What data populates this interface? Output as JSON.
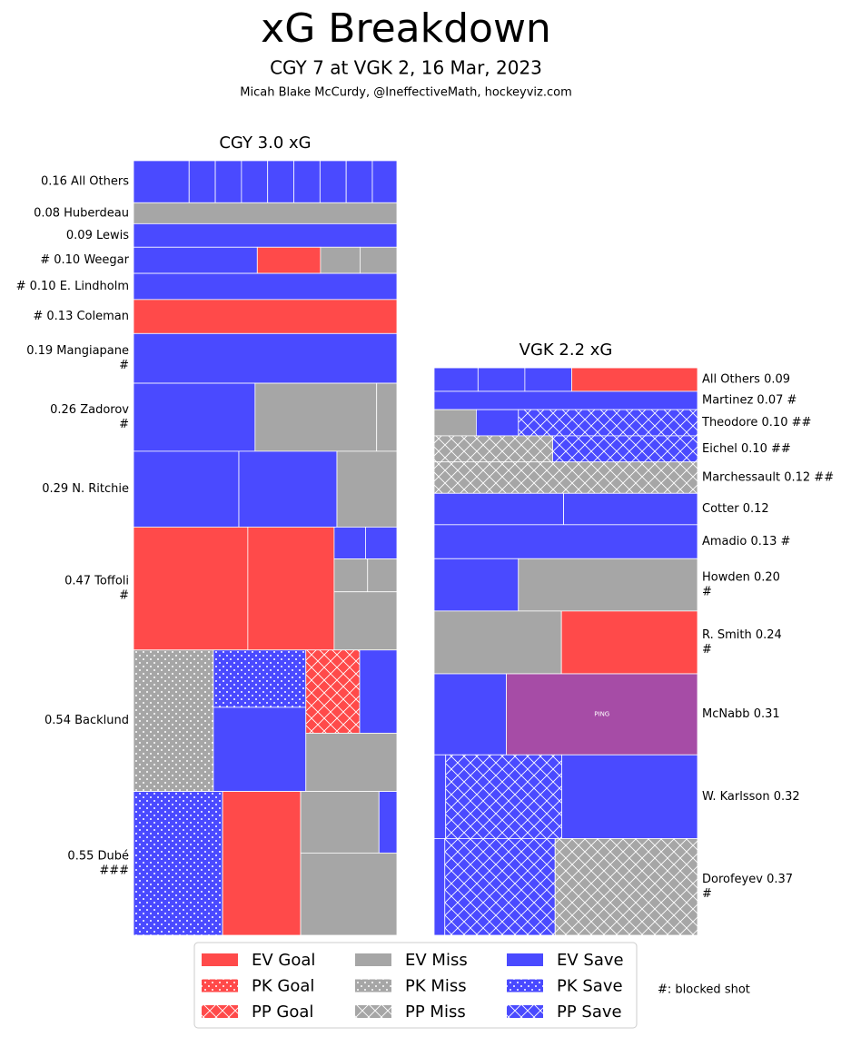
{
  "chart_data": {
    "type": "treemap",
    "title": "xG Breakdown",
    "subtitle": "CGY 7 at VGK 2, 16 Mar, 2023",
    "credit": "Micah Blake McCurdy, @IneffectiveMath, hockeyviz.com",
    "note": "#: blocked shot",
    "legend": [
      {
        "name": "EV Goal",
        "color": "#ff4a4a",
        "hatch": "none"
      },
      {
        "name": "PK Goal",
        "color": "#ff4a4a",
        "hatch": "dots"
      },
      {
        "name": "PP Goal",
        "color": "#ff4a4a",
        "hatch": "cross"
      },
      {
        "name": "EV Miss",
        "color": "#a6a6a6",
        "hatch": "none"
      },
      {
        "name": "PK Miss",
        "color": "#a6a6a6",
        "hatch": "dots"
      },
      {
        "name": "PP Miss",
        "color": "#a6a6a6",
        "hatch": "cross"
      },
      {
        "name": "EV Save",
        "color": "#4a4aff",
        "hatch": "none"
      },
      {
        "name": "PK Save",
        "color": "#4a4aff",
        "hatch": "dots"
      },
      {
        "name": "PP Save",
        "color": "#4a4aff",
        "hatch": "cross"
      }
    ],
    "panels": [
      {
        "title": "CGY 3.0 xG",
        "label_side": "left",
        "players": [
          {
            "label": [
              "0.16 All Others"
            ],
            "columns": [
              [
                [
                  {
                    "xg": 0.034,
                    "kind": "EV Save"
                  }
                ]
              ],
              [
                [
                  {
                    "xg": 0.016,
                    "kind": "EV Save"
                  }
                ]
              ],
              [
                [
                  {
                    "xg": 0.016,
                    "kind": "EV Save"
                  }
                ]
              ],
              [
                [
                  {
                    "xg": 0.016,
                    "kind": "EV Save"
                  }
                ]
              ],
              [
                [
                  {
                    "xg": 0.016,
                    "kind": "EV Save"
                  }
                ]
              ],
              [
                [
                  {
                    "xg": 0.016,
                    "kind": "EV Save"
                  }
                ]
              ],
              [
                [
                  {
                    "xg": 0.016,
                    "kind": "EV Save"
                  }
                ]
              ],
              [
                [
                  {
                    "xg": 0.016,
                    "kind": "EV Save"
                  }
                ]
              ],
              [
                [
                  {
                    "xg": 0.015,
                    "kind": "EV Save"
                  }
                ]
              ]
            ]
          },
          {
            "label": [
              "0.08 Huberdeau"
            ],
            "columns": [
              [
                [
                  {
                    "xg": 0.08,
                    "kind": "EV Miss"
                  }
                ]
              ]
            ]
          },
          {
            "label": [
              "0.09 Lewis"
            ],
            "columns": [
              [
                [
                  {
                    "xg": 0.09,
                    "kind": "EV Save"
                  }
                ]
              ]
            ]
          },
          {
            "label": [
              "# 0.10 Weegar"
            ],
            "columns": [
              [
                [
                  {
                    "xg": 0.047,
                    "kind": "EV Save"
                  }
                ]
              ],
              [
                [
                  {
                    "xg": 0.024,
                    "kind": "EV Goal"
                  }
                ]
              ],
              [
                [
                  {
                    "xg": 0.015,
                    "kind": "EV Miss"
                  }
                ]
              ],
              [
                [
                  {
                    "xg": 0.014,
                    "kind": "EV Miss"
                  }
                ]
              ]
            ]
          },
          {
            "label": [
              "# 0.10 E. Lindholm"
            ],
            "columns": [
              [
                [
                  {
                    "xg": 0.1,
                    "kind": "EV Save"
                  }
                ]
              ]
            ]
          },
          {
            "label": [
              "# 0.13 Coleman"
            ],
            "columns": [
              [
                [
                  {
                    "xg": 0.13,
                    "kind": "EV Goal"
                  }
                ]
              ]
            ]
          },
          {
            "label": [
              "0.19 Mangiapane",
              "#"
            ],
            "columns": [
              [
                [
                  {
                    "xg": 0.19,
                    "kind": "EV Save"
                  }
                ]
              ]
            ]
          },
          {
            "label": [
              "0.26 Zadorov",
              "#"
            ],
            "columns": [
              [
                [
                  {
                    "xg": 0.12,
                    "kind": "EV Save"
                  }
                ]
              ],
              [
                [
                  {
                    "xg": 0.12,
                    "kind": "EV Miss"
                  }
                ]
              ],
              [
                [
                  {
                    "xg": 0.02,
                    "kind": "EV Miss"
                  }
                ]
              ]
            ]
          },
          {
            "label": [
              "0.29 N. Ritchie"
            ],
            "columns": [
              [
                [
                  {
                    "xg": 0.116,
                    "kind": "EV Save"
                  }
                ]
              ],
              [
                [
                  {
                    "xg": 0.108,
                    "kind": "EV Save"
                  }
                ]
              ],
              [
                [
                  {
                    "xg": 0.066,
                    "kind": "EV Miss"
                  }
                ]
              ]
            ]
          },
          {
            "label": [
              "0.47 Toffoli",
              "#"
            ],
            "columns": [
              [
                [
                  {
                    "xg": 0.204,
                    "kind": "EV Goal"
                  }
                ]
              ],
              [
                [
                  {
                    "xg": 0.154,
                    "kind": "EV Goal"
                  }
                ]
              ],
              [
                [
                  {
                    "xg": 0.0145,
                    "kind": "EV Save"
                  },
                  {
                    "xg": 0.0145,
                    "kind": "EV Save"
                  }
                ],
                [
                  {
                    "xg": 0.016,
                    "kind": "EV Miss"
                  },
                  {
                    "xg": 0.014,
                    "kind": "EV Miss"
                  }
                ],
                [
                  {
                    "xg": 0.053,
                    "kind": "EV Miss"
                  }
                ]
              ]
            ]
          },
          {
            "label": [
              "0.54 Backlund"
            ],
            "columns": [
              [
                [
                  {
                    "xg": 0.164,
                    "kind": "PK Miss"
                  }
                ]
              ],
              [
                [
                  {
                    "xg": 0.077,
                    "kind": "PK Save"
                  }
                ],
                [
                  {
                    "xg": 0.113,
                    "kind": "EV Save"
                  }
                ]
              ],
              [
                [
                  {
                    "xg": 0.065,
                    "kind": "PP Goal"
                  },
                  {
                    "xg": 0.045,
                    "kind": "EV Save"
                  }
                ],
                [
                  {
                    "xg": 0.077,
                    "kind": "EV Miss"
                  }
                ]
              ]
            ]
          },
          {
            "label": [
              "0.55 Dubé",
              "###"
            ],
            "columns": [
              [
                [
                  {
                    "xg": 0.186,
                    "kind": "PK Save"
                  }
                ]
              ],
              [
                [
                  {
                    "xg": 0.163,
                    "kind": "EV Goal"
                  }
                ]
              ],
              [
                [
                  {
                    "xg": 0.07,
                    "kind": "EV Miss"
                  },
                  {
                    "xg": 0.016,
                    "kind": "EV Save"
                  }
                ],
                [
                  {
                    "xg": 0.115,
                    "kind": "EV Miss"
                  }
                ]
              ]
            ]
          }
        ]
      },
      {
        "title": "VGK 2.2 xG",
        "label_side": "right",
        "players": [
          {
            "label": [
              "All Others 0.09"
            ],
            "columns": [
              [
                [
                  {
                    "xg": 0.015,
                    "kind": "EV Save"
                  }
                ]
              ],
              [
                [
                  {
                    "xg": 0.016,
                    "kind": "EV Save"
                  }
                ]
              ],
              [
                [
                  {
                    "xg": 0.016,
                    "kind": "EV Save"
                  }
                ]
              ],
              [
                [
                  {
                    "xg": 0.043,
                    "kind": "EV Goal"
                  }
                ]
              ]
            ]
          },
          {
            "label": [
              "Martinez 0.07 #"
            ],
            "columns": [
              [
                [
                  {
                    "xg": 0.07,
                    "kind": "EV Save"
                  }
                ]
              ]
            ]
          },
          {
            "label": [
              "Theodore 0.10 ##"
            ],
            "columns": [
              [
                [
                  {
                    "xg": 0.016,
                    "kind": "EV Miss"
                  }
                ]
              ],
              [
                [
                  {
                    "xg": 0.016,
                    "kind": "EV Save"
                  }
                ]
              ],
              [
                [
                  {
                    "xg": 0.068,
                    "kind": "PP Save"
                  }
                ]
              ]
            ]
          },
          {
            "label": [
              "Eichel 0.10 ##"
            ],
            "columns": [
              [
                [
                  {
                    "xg": 0.045,
                    "kind": "PP Miss"
                  }
                ]
              ],
              [
                [
                  {
                    "xg": 0.055,
                    "kind": "PP Save"
                  }
                ]
              ]
            ]
          },
          {
            "label": [
              "Marchessault 0.12 ##"
            ],
            "columns": [
              [
                [
                  {
                    "xg": 0.12,
                    "kind": "PP Miss"
                  }
                ]
              ]
            ]
          },
          {
            "label": [
              "Cotter 0.12"
            ],
            "columns": [
              [
                [
                  {
                    "xg": 0.059,
                    "kind": "EV Save"
                  }
                ]
              ],
              [
                [
                  {
                    "xg": 0.061,
                    "kind": "EV Save"
                  }
                ]
              ]
            ]
          },
          {
            "label": [
              "Amadio 0.13 #"
            ],
            "columns": [
              [
                [
                  {
                    "xg": 0.13,
                    "kind": "EV Save"
                  }
                ]
              ]
            ]
          },
          {
            "label": [
              "Howden 0.20",
              "#"
            ],
            "columns": [
              [
                [
                  {
                    "xg": 0.064,
                    "kind": "EV Save"
                  }
                ]
              ],
              [
                [
                  {
                    "xg": 0.136,
                    "kind": "EV Miss"
                  }
                ]
              ]
            ]
          },
          {
            "label": [
              "R. Smith 0.24",
              "#"
            ],
            "columns": [
              [
                [
                  {
                    "xg": 0.116,
                    "kind": "EV Miss"
                  }
                ]
              ],
              [
                [
                  {
                    "xg": 0.124,
                    "kind": "EV Goal"
                  }
                ]
              ]
            ]
          },
          {
            "label": [
              "McNabb 0.31"
            ],
            "columns": [
              [
                [
                  {
                    "xg": 0.085,
                    "kind": "EV Save"
                  }
                ]
              ],
              [
                [
                  {
                    "xg": 0.225,
                    "color": "#a64ca6",
                    "text": "PING"
                  }
                ]
              ]
            ]
          },
          {
            "label": [
              "W. Karlsson 0.32"
            ],
            "columns": [
              [
                [
                  {
                    "xg": 0.014,
                    "kind": "EV Save"
                  }
                ]
              ],
              [
                [
                  {
                    "xg": 0.141,
                    "kind": "PP Save"
                  }
                ]
              ],
              [
                [
                  {
                    "xg": 0.165,
                    "kind": "EV Save"
                  }
                ]
              ]
            ]
          },
          {
            "label": [
              "Dorofeyev 0.37",
              "#"
            ],
            "columns": [
              [
                [
                  {
                    "xg": 0.015,
                    "kind": "EV Save"
                  }
                ]
              ],
              [
                [
                  {
                    "xg": 0.155,
                    "kind": "PP Save"
                  }
                ]
              ],
              [
                [
                  {
                    "xg": 0.2,
                    "kind": "PP Miss"
                  }
                ]
              ]
            ]
          }
        ]
      }
    ]
  }
}
